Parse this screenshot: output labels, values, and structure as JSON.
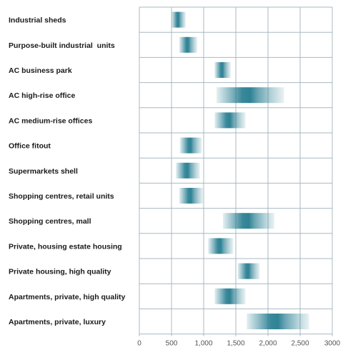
{
  "chart_data": {
    "type": "bar",
    "orientation": "horizontal",
    "range_bars": true,
    "categories": [
      "Industrial sheds",
      "Purpose-built industrial  units",
      "AC business park",
      "AC high-rise office",
      "AC medium-rise offices",
      "Office fitout",
      "Supermarkets shell",
      "Shopping centres, retail units",
      "Shopping centres, mall",
      "Private, housing estate housing",
      "Private housing, high quality",
      "Apartments, private, high quality",
      "Apartments, private, luxury"
    ],
    "series": [
      {
        "low": [
          500,
          620,
          1170,
          1200,
          1170,
          630,
          570,
          620,
          1300,
          1070,
          1530,
          1170,
          1670
        ],
        "high": [
          720,
          900,
          1420,
          2250,
          1650,
          970,
          940,
          990,
          2100,
          1460,
          1870,
          1650,
          2640
        ]
      }
    ],
    "xlim": [
      0,
      3000
    ],
    "x_ticks": [
      "0",
      "500",
      "1,000",
      "1,500",
      "2,000",
      "2,500",
      "3000"
    ],
    "x_tick_values": [
      0,
      500,
      1000,
      1500,
      2000,
      2500,
      3000
    ],
    "title": "",
    "xlabel": "",
    "ylabel": "",
    "grid": true,
    "bar_color": "#2f8295",
    "grid_color": "#a9b8c2"
  }
}
